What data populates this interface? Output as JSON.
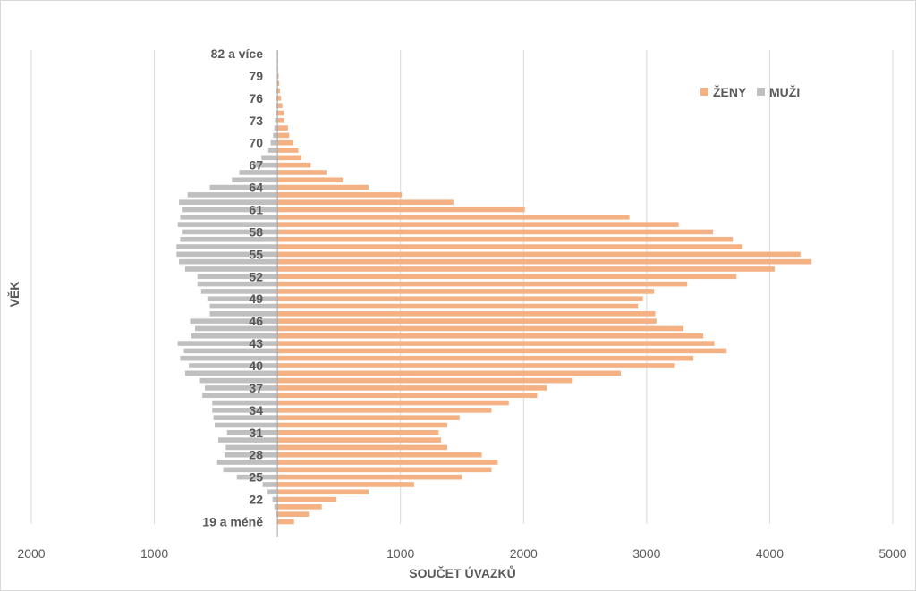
{
  "chart_data": {
    "type": "bar",
    "orientation": "horizontal",
    "layout": "population-pyramid",
    "xlabel": "SOUČET ÚVAZKŮ",
    "ylabel": "VĚK",
    "xlim": [
      -2000,
      5000
    ],
    "x_ticks": [
      "2000",
      "1000",
      "0",
      "1000",
      "2000",
      "3000",
      "4000",
      "5000"
    ],
    "categories": [
      "19 a méně",
      "20",
      "21",
      "22",
      "23",
      "24",
      "25",
      "26",
      "27",
      "28",
      "29",
      "30",
      "31",
      "32",
      "33",
      "34",
      "35",
      "36",
      "37",
      "38",
      "39",
      "40",
      "41",
      "42",
      "43",
      "44",
      "45",
      "46",
      "47",
      "48",
      "49",
      "50",
      "51",
      "52",
      "53",
      "54",
      "55",
      "56",
      "57",
      "58",
      "59",
      "60",
      "61",
      "62",
      "63",
      "64",
      "65",
      "66",
      "67",
      "68",
      "69",
      "70",
      "71",
      "72",
      "73",
      "74",
      "75",
      "76",
      "77",
      "78",
      "79",
      "80",
      "81",
      "82 a více"
    ],
    "y_tick_labels": [
      "19 a méně",
      "22",
      "25",
      "28",
      "31",
      "34",
      "37",
      "40",
      "43",
      "46",
      "49",
      "52",
      "55",
      "58",
      "61",
      "64",
      "67",
      "70",
      "73",
      "76",
      "79",
      "82 a více"
    ],
    "legend_position": "top-right",
    "grid": "vertical",
    "series": [
      {
        "name": "ŽENY",
        "color": "#f4b183",
        "values": [
          135,
          255,
          360,
          480,
          740,
          1110,
          1500,
          1740,
          1790,
          1660,
          1380,
          1330,
          1310,
          1380,
          1480,
          1740,
          1880,
          2110,
          2190,
          2400,
          2790,
          3230,
          3380,
          3650,
          3550,
          3460,
          3300,
          3080,
          3070,
          2930,
          2970,
          3060,
          3330,
          3730,
          4040,
          4340,
          4250,
          3780,
          3700,
          3540,
          3260,
          2860,
          2010,
          1430,
          1010,
          740,
          530,
          400,
          270,
          195,
          170,
          130,
          95,
          85,
          55,
          50,
          40,
          30,
          20,
          15,
          10,
          5,
          5,
          5
        ]
      },
      {
        "name": "MUŽI",
        "color": "#bfbfbf",
        "values": [
          5,
          10,
          25,
          40,
          80,
          120,
          330,
          440,
          490,
          430,
          420,
          480,
          410,
          510,
          520,
          530,
          530,
          610,
          590,
          630,
          750,
          720,
          790,
          760,
          810,
          700,
          670,
          710,
          550,
          550,
          570,
          620,
          650,
          650,
          750,
          800,
          820,
          820,
          790,
          770,
          810,
          790,
          770,
          800,
          730,
          550,
          370,
          310,
          200,
          130,
          75,
          55,
          35,
          25,
          20,
          15,
          10,
          10,
          10,
          5,
          5,
          5,
          5,
          5
        ]
      }
    ]
  }
}
